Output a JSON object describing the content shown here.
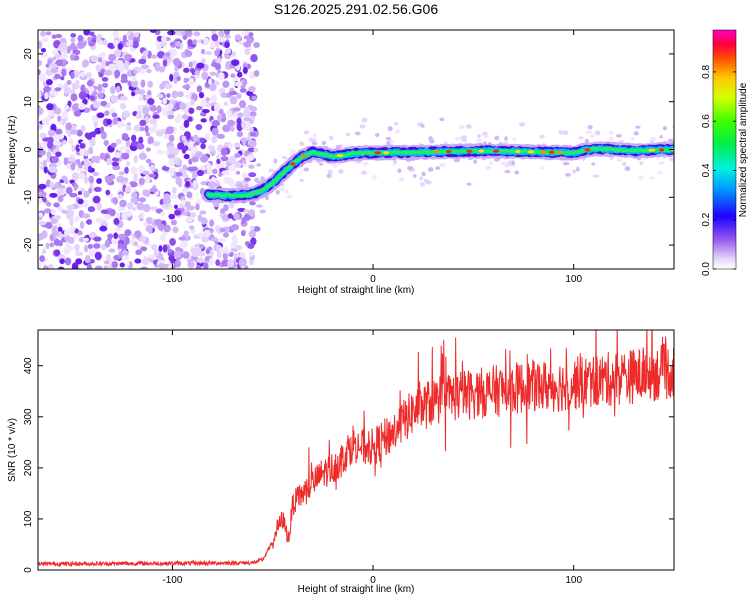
{
  "title": "S126.2025.291.02.56.G06",
  "colors": {
    "snr_line": "#ee2b2b",
    "scatter_base": "#8a3cf0"
  },
  "chart_data": [
    {
      "type": "heatmap",
      "name": "spectrogram",
      "xlabel": "Height of straight line (km)",
      "ylabel": "Frequency (Hz)",
      "xlim": [
        -167,
        150
      ],
      "ylim": [
        -25,
        25
      ],
      "x_tick_values": [
        -100,
        0,
        100
      ],
      "x_tick_labels": [
        "-100",
        "0",
        "100"
      ],
      "y_tick_values": [
        -20,
        -10,
        0,
        10,
        20
      ],
      "y_tick_labels": [
        "-20",
        "-10",
        "0",
        "10",
        "20"
      ],
      "colorbar": {
        "label": "Normalized spectral amplitude",
        "range": [
          0,
          0.97
        ],
        "tick_values": [
          0.0,
          0.2,
          0.4,
          0.6,
          0.8
        ],
        "tick_labels": [
          "0.0",
          "0.2",
          "0.4",
          "0.6",
          "0.8"
        ]
      },
      "noise_region_x": [
        -167,
        -58
      ],
      "ridge_x": [
        -82,
        -70,
        -62,
        -55,
        -50,
        -45,
        -40,
        -35,
        -30,
        -25,
        -20,
        -15,
        -10,
        0,
        20,
        40,
        60,
        80,
        100,
        110,
        120,
        130,
        140,
        150
      ],
      "ridge_freq": [
        -9.5,
        -9.7,
        -9.5,
        -8.5,
        -7,
        -5,
        -3,
        -1.5,
        -0.5,
        -1,
        -1.5,
        -1.2,
        -0.8,
        -0.7,
        -0.6,
        -0.4,
        -0.3,
        -0.5,
        -0.7,
        0.2,
        0,
        -0.3,
        -0.1,
        0
      ]
    },
    {
      "type": "line",
      "name": "snr",
      "xlabel": "Height of straight line (km)",
      "ylabel": "SNR (10 * v/v)",
      "xlim": [
        -167,
        150
      ],
      "ylim": [
        0,
        470
      ],
      "x_tick_values": [
        -100,
        0,
        100
      ],
      "x_tick_labels": [
        "-100",
        "0",
        "100"
      ],
      "y_tick_values": [
        0,
        100,
        200,
        300,
        400
      ],
      "y_tick_labels": [
        "0",
        "100",
        "200",
        "300",
        "400"
      ],
      "series": [
        {
          "name": "SNR",
          "x": [
            -167,
            -100,
            -60,
            -55,
            -50,
            -48,
            -45,
            -42,
            -40,
            -35,
            -30,
            -25,
            -20,
            -15,
            -10,
            -5,
            0,
            10,
            20,
            30,
            40,
            50,
            60,
            70,
            80,
            90,
            100,
            110,
            120,
            130,
            140,
            150
          ],
          "y": [
            12,
            13,
            14,
            20,
            55,
            80,
            100,
            60,
            130,
            150,
            170,
            190,
            200,
            220,
            250,
            240,
            240,
            270,
            310,
            330,
            340,
            345,
            350,
            355,
            360,
            360,
            365,
            370,
            375,
            380,
            385,
            390
          ]
        }
      ]
    }
  ]
}
